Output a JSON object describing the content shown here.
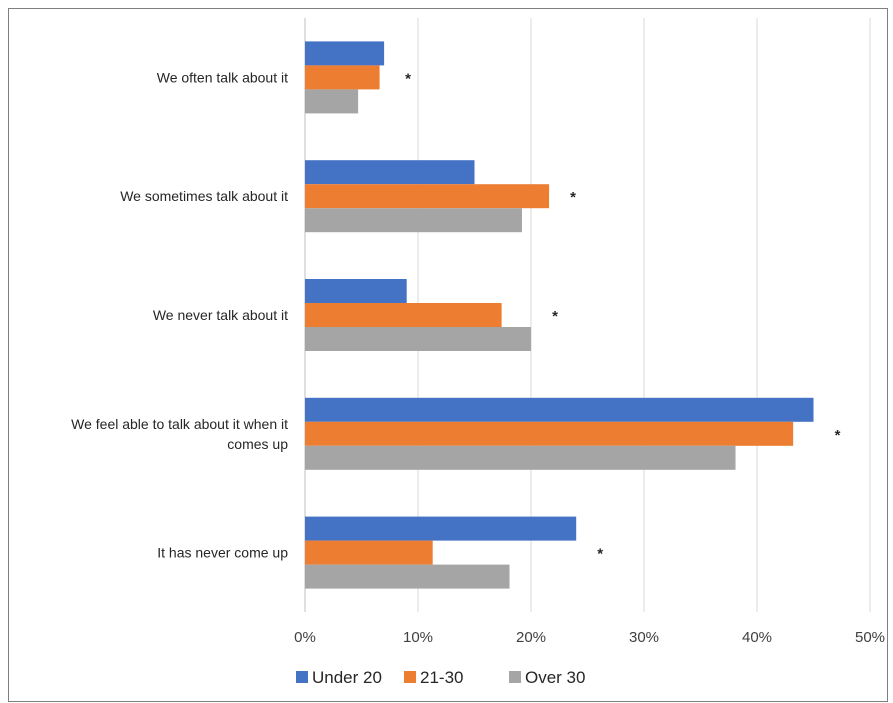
{
  "chart_data": {
    "type": "bar",
    "orientation": "horizontal",
    "title": "",
    "xlabel": "",
    "ylabel": "",
    "categories": [
      [
        "We often talk about it"
      ],
      [
        "We sometimes talk about it"
      ],
      [
        "We never talk about it"
      ],
      [
        "We feel able to talk about it when it",
        "comes up"
      ],
      [
        "It has never come up"
      ]
    ],
    "series": [
      {
        "name": "Under 20",
        "color": "#4472c4",
        "values": [
          7,
          15,
          9,
          45,
          24
        ]
      },
      {
        "name": "21-30",
        "color": "#ed7d31",
        "values": [
          6.6,
          21.6,
          17.4,
          43.2,
          11.3
        ]
      },
      {
        "name": "Over 30",
        "color": "#a5a5a5",
        "values": [
          4.7,
          19.2,
          20,
          38.1,
          18.1
        ]
      }
    ],
    "annotations": [
      "*",
      "*",
      "*",
      "*",
      "*"
    ],
    "xlim": [
      0,
      50
    ],
    "xticks": [
      "0%",
      "10%",
      "20%",
      "30%",
      "40%",
      "50%"
    ],
    "grid": true,
    "legend_position": "bottom"
  }
}
